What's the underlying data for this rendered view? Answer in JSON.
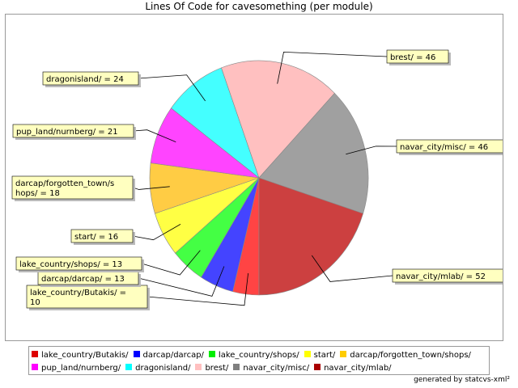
{
  "chart_data": {
    "type": "pie",
    "title": "Lines Of Code for cavesomething (per module)",
    "slices": [
      {
        "label": "lake_country/Butakis/",
        "value": 10,
        "color": "#ff4444"
      },
      {
        "label": "darcap/darcap/",
        "value": 13,
        "color": "#4444ff"
      },
      {
        "label": "lake_country/shops/",
        "value": 13,
        "color": "#44ff44"
      },
      {
        "label": "start/",
        "value": 16,
        "color": "#ffff44"
      },
      {
        "label": "darcap/forgotten_town/shops/",
        "value": 18,
        "color": "#ffcc44"
      },
      {
        "label": "pup_land/nurnberg/",
        "value": 21,
        "color": "#ff44ff"
      },
      {
        "label": "dragonisland/",
        "value": 24,
        "color": "#44ffff"
      },
      {
        "label": "brest/",
        "value": 46,
        "color": "#ffc0c0"
      },
      {
        "label": "navar_city/misc/",
        "value": 46,
        "color": "#a0a0a0"
      },
      {
        "label": "navar_city/mlab/",
        "value": 52,
        "color": "#cc4040"
      }
    ],
    "labels": [
      {
        "lines": [
          "lake_country/Butakis/ ="
        ],
        "line2": "10"
      },
      {
        "lines": [
          "darcap/darcap/ = 13"
        ]
      },
      {
        "lines": [
          "lake_country/shops/ = 13"
        ]
      },
      {
        "lines": [
          "start/ = 16"
        ]
      },
      {
        "lines": [
          "darcap/forgotten_town/s"
        ],
        "line2": "hops/ = 18"
      },
      {
        "lines": [
          "pup_land/nurnberg/ = 21"
        ]
      },
      {
        "lines": [
          "dragonisland/ = 24"
        ]
      },
      {
        "lines": [
          "brest/ = 46"
        ]
      },
      {
        "lines": [
          "navar_city/misc/ = 46"
        ]
      },
      {
        "lines": [
          "navar_city/mlab/ = 52"
        ]
      }
    ],
    "legend_placement": "bottom",
    "legend_colors": [
      "#dd0000",
      "#0000ff",
      "#00ee00",
      "#ffff00",
      "#ffcc00",
      "#ff00ff",
      "#00ffff",
      "#ffc0c0",
      "#808080",
      "#aa0000"
    ]
  },
  "footer": "generated by statcvs-xml²"
}
